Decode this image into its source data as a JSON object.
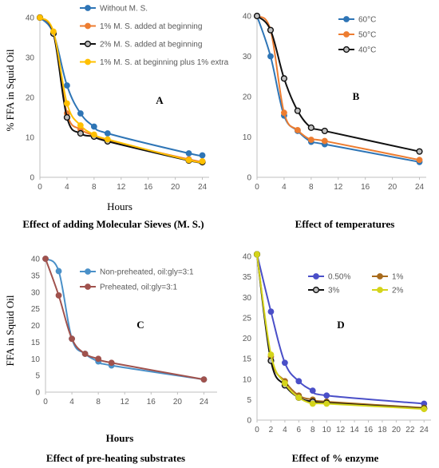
{
  "chart_data": [
    {
      "type": "line",
      "panel_label": "A",
      "ylabel": "% FFA in Squid Oil",
      "xlabel": "Hours",
      "caption": "Effect of adding Molecular Sieves (M. S.)",
      "xlim": [
        0,
        25
      ],
      "ylim": [
        0,
        40
      ],
      "xticks": [
        "0",
        "4",
        "8",
        "12",
        "16",
        "20",
        "24"
      ],
      "yticks": [
        "0",
        "10",
        "20",
        "30",
        "40"
      ],
      "grid": false,
      "legend_position": "top-right",
      "series": [
        {
          "name": "Without M. S.",
          "color": "#2e75b6",
          "x": [
            0,
            2,
            4,
            6,
            8,
            10,
            22,
            24
          ],
          "y": [
            40,
            36,
            23,
            16,
            12.7,
            11,
            6,
            5.5
          ]
        },
        {
          "name": "1% M. S. added at beginning",
          "color": "#ed7d31",
          "x": [
            0,
            2,
            4,
            6,
            8,
            10,
            22,
            24
          ],
          "y": [
            40,
            36,
            16,
            12,
            10.5,
            9.2,
            4.5,
            4
          ]
        },
        {
          "name": "2% M. S. added at beginning",
          "color": "#111111",
          "x": [
            0,
            2,
            4,
            6,
            8,
            10,
            22,
            24
          ],
          "y": [
            40,
            36,
            15,
            11,
            10.2,
            9,
            4.2,
            3.8
          ]
        },
        {
          "name": "1% M. S. at beginning plus 1% extra",
          "color": "#ffc000",
          "x": [
            0,
            2,
            4,
            6,
            8,
            10,
            22,
            24
          ],
          "y": [
            40,
            36.5,
            18.5,
            13,
            10.7,
            9.5,
            4.3,
            4
          ]
        }
      ]
    },
    {
      "type": "line",
      "panel_label": "B",
      "caption": "Effect of temperatures",
      "xlim": [
        0,
        25
      ],
      "ylim": [
        0,
        40
      ],
      "xticks": [
        "0",
        "4",
        "8",
        "12",
        "16",
        "20",
        "24"
      ],
      "yticks": [
        "0",
        "10",
        "20",
        "30",
        "40"
      ],
      "grid": false,
      "legend_position": "top-right",
      "series": [
        {
          "name": "60°C",
          "color": "#2e75b6",
          "x": [
            0,
            2,
            4,
            6,
            8,
            10,
            24
          ],
          "y": [
            40,
            30,
            15.3,
            11.5,
            8.8,
            8.2,
            3.8
          ]
        },
        {
          "name": "50°C",
          "color": "#ed7d31",
          "x": [
            0,
            2,
            4,
            6,
            8,
            10,
            24
          ],
          "y": [
            40,
            36.5,
            16,
            11.7,
            9.3,
            9,
            4.3
          ]
        },
        {
          "name": "40°C",
          "color": "#111111",
          "x": [
            0,
            2,
            4,
            6,
            8,
            10,
            24
          ],
          "y": [
            40,
            36.5,
            24.5,
            16.5,
            12.3,
            11.5,
            6.4
          ]
        }
      ]
    },
    {
      "type": "line",
      "panel_label": "C",
      "ylabel": "FFA in Squid Oil",
      "xlabel": "Hours",
      "caption": "Effect of pre-heating substrates",
      "xlim": [
        0,
        26
      ],
      "ylim": [
        0,
        40
      ],
      "xticks": [
        "0",
        "4",
        "8",
        "12",
        "16",
        "20",
        "24"
      ],
      "yticks": [
        "0",
        "5",
        "10",
        "15",
        "20",
        "25",
        "30",
        "35",
        "40"
      ],
      "grid": false,
      "legend_position": "top-right",
      "series": [
        {
          "name": "Non-preheated, oil:gly=3:1",
          "color": "#4a90c8",
          "x": [
            0,
            2,
            4,
            6,
            8,
            10,
            24
          ],
          "y": [
            40,
            36.3,
            16,
            11.5,
            9.2,
            8,
            3.8
          ]
        },
        {
          "name": "Preheated, oil:gly=3:1",
          "color": "#a0524d",
          "x": [
            0,
            2,
            4,
            6,
            8,
            10,
            24
          ],
          "y": [
            40,
            29,
            16,
            11.5,
            10,
            8.8,
            3.8
          ]
        }
      ]
    },
    {
      "type": "line",
      "panel_label": "D",
      "caption": "Effect of % enzyme",
      "xlim": [
        0,
        25
      ],
      "ylim": [
        0,
        40
      ],
      "xticks": [
        "0",
        "2",
        "4",
        "6",
        "8",
        "10",
        "12",
        "14",
        "16",
        "18",
        "20",
        "22",
        "24"
      ],
      "yticks": [
        "0",
        "5",
        "10",
        "15",
        "20",
        "25",
        "30",
        "35",
        "40"
      ],
      "grid": false,
      "legend_position": "top-right",
      "series": [
        {
          "name": "0.50%",
          "color": "#4a4fc8",
          "x": [
            0,
            2,
            4,
            6,
            8,
            10,
            24
          ],
          "y": [
            40.5,
            26.5,
            14,
            9.5,
            7.2,
            6,
            4
          ]
        },
        {
          "name": "1%",
          "color": "#a86b1c",
          "x": [
            0,
            2,
            4,
            6,
            8,
            10,
            24
          ],
          "y": [
            40.5,
            15.5,
            9.5,
            6,
            5,
            4.5,
            3
          ]
        },
        {
          "name": "3%",
          "color": "#111111",
          "x": [
            0,
            2,
            4,
            6,
            8,
            10,
            24
          ],
          "y": [
            40.5,
            14.5,
            8.5,
            5.5,
            4.5,
            4.2,
            2.8
          ]
        },
        {
          "name": "2%",
          "color": "#d4d41a",
          "x": [
            0,
            2,
            4,
            6,
            8,
            10,
            24
          ],
          "y": [
            40.5,
            16,
            9,
            5.5,
            4,
            4,
            2.7
          ]
        }
      ]
    }
  ]
}
